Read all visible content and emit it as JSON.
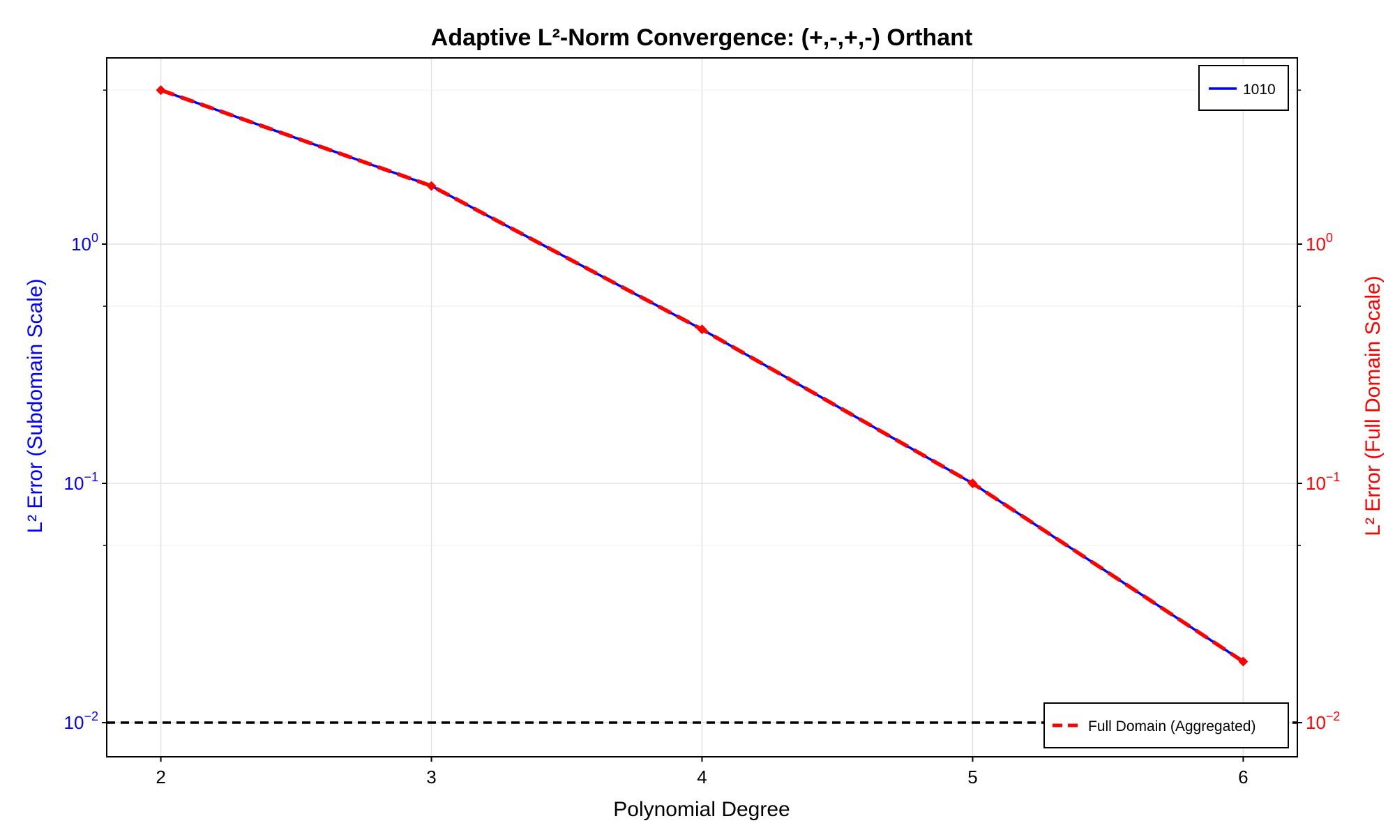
{
  "chart_data": {
    "type": "line",
    "title": "Adaptive L²-Norm Convergence: (+,-,+,-) Orthant",
    "xlabel": "Polynomial Degree",
    "ylabel_left": "L² Error (Subdomain Scale)",
    "ylabel_right": "L² Error (Full Domain Scale)",
    "x_ticks": [
      2,
      3,
      4,
      5,
      6
    ],
    "xlim": [
      1.8,
      6.2
    ],
    "y_scale": "log",
    "ylim": [
      0.0072,
      6.0
    ],
    "y_ticks": [
      {
        "value": 1,
        "base": "10",
        "exp": "0"
      },
      {
        "value": 0.1,
        "base": "10",
        "exp": "−1"
      },
      {
        "value": 0.01,
        "base": "10",
        "exp": "−2"
      }
    ],
    "y_minor_ticks": [
      0.55,
      0.055,
      4.4
    ],
    "grid": true,
    "series": [
      {
        "name": "1010",
        "color": "#0000ff",
        "style": "solid",
        "axis": "left",
        "x": [
          2,
          3,
          4,
          5,
          6
        ],
        "values": [
          4.4,
          1.75,
          0.44,
          0.1,
          0.018
        ]
      },
      {
        "name": "Full Domain (Aggregated)",
        "color": "#ff0000",
        "style": "dashed",
        "marker": "diamond",
        "axis": "right",
        "x": [
          2,
          3,
          4,
          5,
          6
        ],
        "values": [
          4.4,
          1.75,
          0.44,
          0.1,
          0.018
        ]
      }
    ],
    "reference_line": {
      "value": 0.01,
      "color": "#000000",
      "style": "dashed"
    },
    "legend_top": {
      "position": "top-right",
      "entries": [
        "1010"
      ]
    },
    "legend_bottom": {
      "position": "bottom-right",
      "entries": [
        "Full Domain (Aggregated)"
      ]
    }
  }
}
